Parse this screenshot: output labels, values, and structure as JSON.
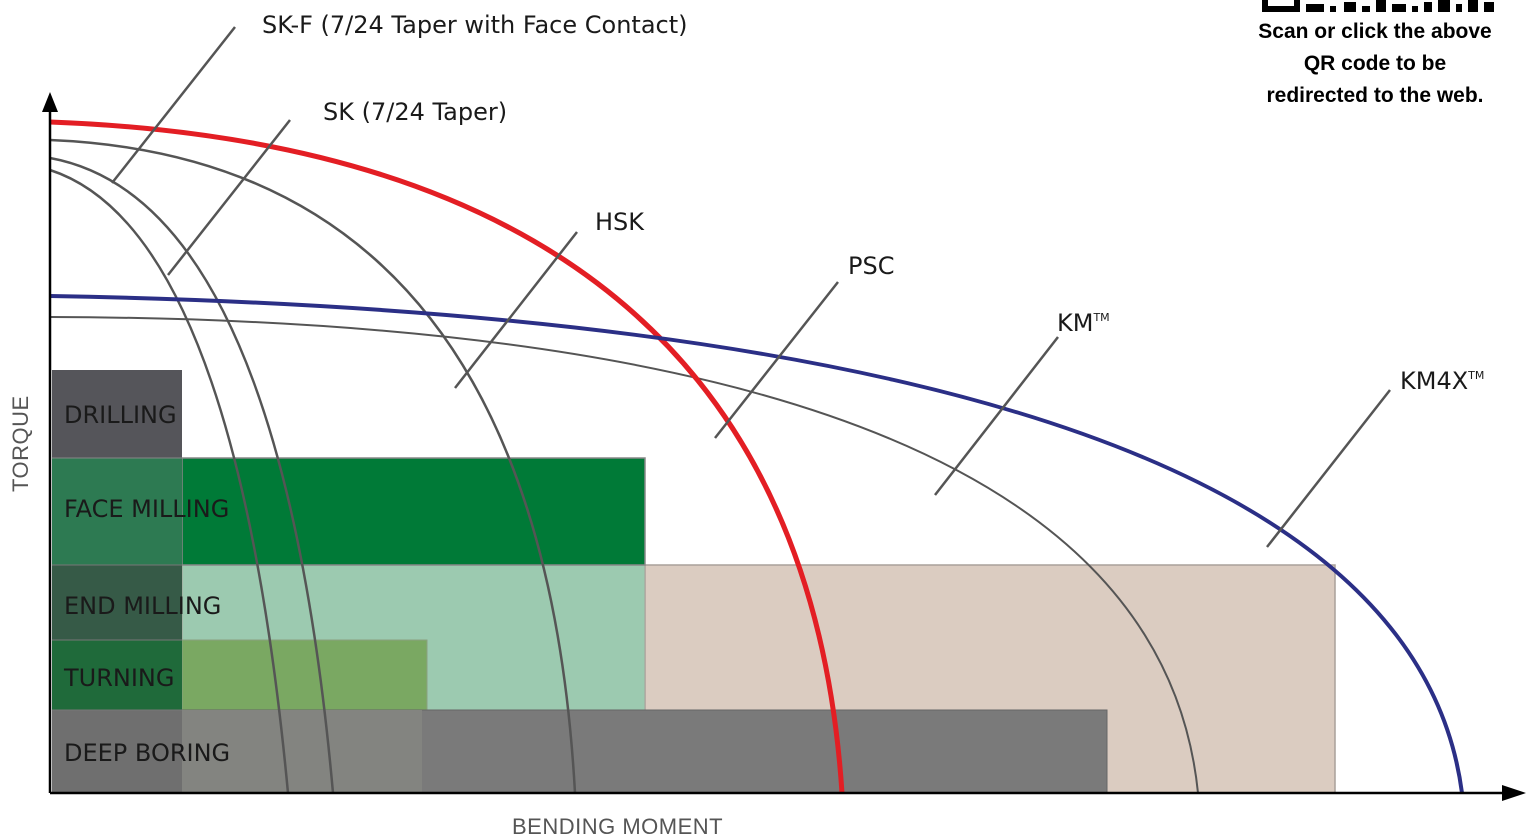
{
  "axes": {
    "x_label": "BENDING MOMENT",
    "y_label": "TORQUE"
  },
  "curves": [
    {
      "id": "sk-f",
      "label": "SK-F (7/24 Taper with Face Contact)",
      "color": "#555555"
    },
    {
      "id": "sk",
      "label": "SK (7/24 Taper)",
      "color": "#555555"
    },
    {
      "id": "hsk",
      "label": "HSK",
      "color": "#555555"
    },
    {
      "id": "psc",
      "label": "PSC",
      "color": "#e31e24"
    },
    {
      "id": "km",
      "label": "KM",
      "trademark": "TM",
      "color": "#555555"
    },
    {
      "id": "km4x",
      "label": "KM4X",
      "trademark": "TM",
      "color": "#2b2f86"
    }
  ],
  "operations": [
    {
      "id": "drilling",
      "label": "DRILLING"
    },
    {
      "id": "face-milling",
      "label": "FACE MILLING"
    },
    {
      "id": "end-milling",
      "label": "END MILLING"
    },
    {
      "id": "turning",
      "label": "TURNING"
    },
    {
      "id": "deep-boring",
      "label": "DEEP BORING"
    }
  ],
  "colors": {
    "drilling": "#55555a",
    "face_milling": "#007a37",
    "end_milling": "#9ccab0",
    "turning": "#7aa862",
    "deep_boring": "#7a7a7a",
    "km4x_zone": "#dbccc1",
    "psc_curve": "#e31e24",
    "km4x_curve": "#2b2f86"
  },
  "qr": {
    "line1": "Scan or click the above",
    "line2": "QR code to be",
    "line3": "redirected to the web."
  }
}
